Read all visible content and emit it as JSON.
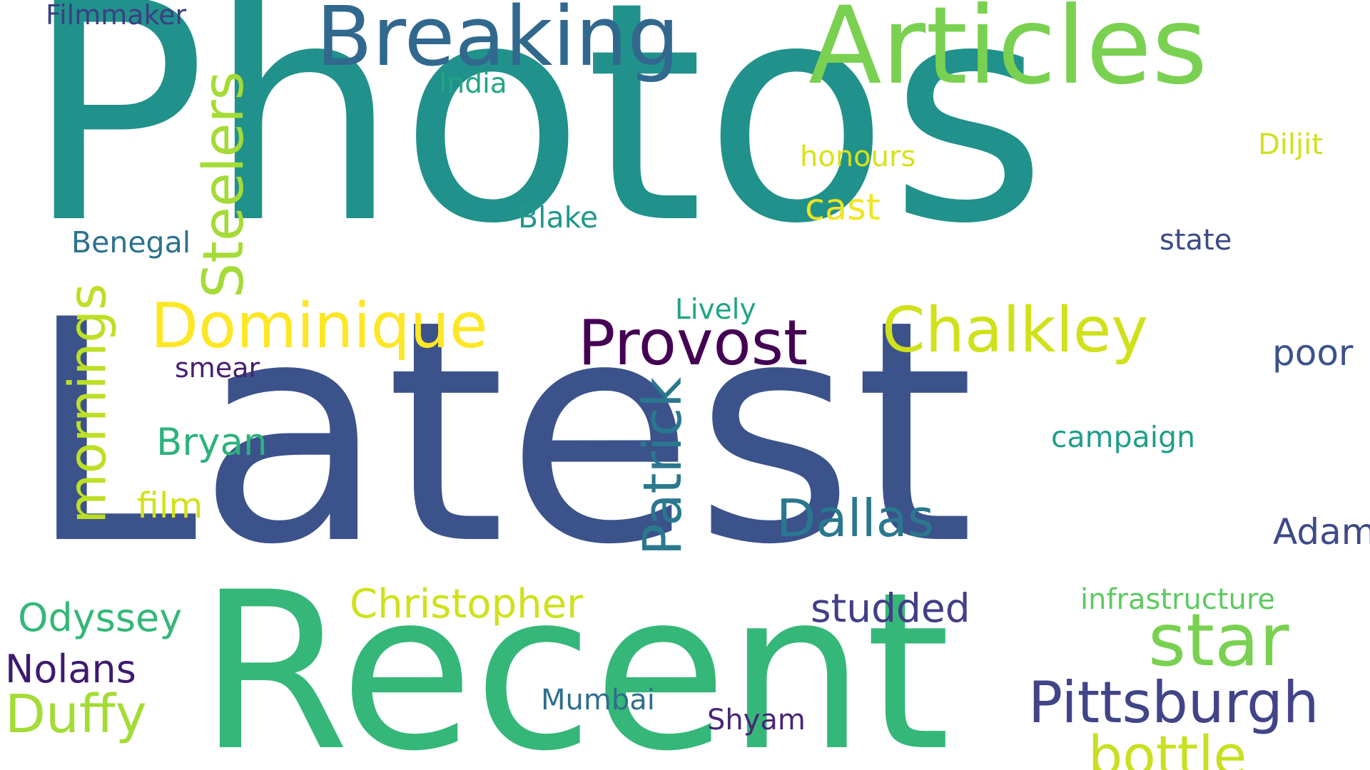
{
  "words": [
    {
      "id": "photos",
      "text": "Photos",
      "color": "#21918c",
      "orientation": "horizontal"
    },
    {
      "id": "latest",
      "text": "Latest",
      "color": "#3b528b",
      "orientation": "horizontal"
    },
    {
      "id": "recent",
      "text": "Recent",
      "color": "#35b779",
      "orientation": "horizontal"
    },
    {
      "id": "articles",
      "text": "Articles",
      "color": "#7ad151",
      "orientation": "horizontal"
    },
    {
      "id": "breaking",
      "text": "Breaking",
      "color": "#31688e",
      "orientation": "horizontal"
    },
    {
      "id": "steelers",
      "text": "Steelers",
      "color": "#a5db36",
      "orientation": "vertical"
    },
    {
      "id": "mornings",
      "text": "mornings",
      "color": "#bddf26",
      "orientation": "vertical"
    },
    {
      "id": "patrick",
      "text": "Patrick",
      "color": "#2a788e",
      "orientation": "vertical"
    },
    {
      "id": "dominique",
      "text": "Dominique",
      "color": "#fde725",
      "orientation": "horizontal"
    },
    {
      "id": "provost",
      "text": "Provost",
      "color": "#440154",
      "orientation": "horizontal"
    },
    {
      "id": "chalkley",
      "text": "Chalkley",
      "color": "#d0e11c",
      "orientation": "horizontal"
    },
    {
      "id": "star",
      "text": "star",
      "color": "#7ad151",
      "orientation": "horizontal"
    },
    {
      "id": "pittsburgh",
      "text": "Pittsburgh",
      "color": "#414487",
      "orientation": "horizontal"
    },
    {
      "id": "bottle",
      "text": "bottle",
      "color": "#c8e020",
      "orientation": "horizontal"
    },
    {
      "id": "dallas",
      "text": "Dallas",
      "color": "#2a788e",
      "orientation": "horizontal"
    },
    {
      "id": "christopher",
      "text": "Christopher",
      "color": "#d0e11c",
      "orientation": "horizontal"
    },
    {
      "id": "studded",
      "text": "studded",
      "color": "#433e85",
      "orientation": "horizontal"
    },
    {
      "id": "duffy",
      "text": "Duffy",
      "color": "#a5db36",
      "orientation": "horizontal"
    },
    {
      "id": "odyssey",
      "text": "Odyssey",
      "color": "#35b779",
      "orientation": "horizontal"
    },
    {
      "id": "nolans",
      "text": "Nolans",
      "color": "#3e1a6f",
      "orientation": "horizontal"
    },
    {
      "id": "bryan",
      "text": "Bryan",
      "color": "#2db27d",
      "orientation": "horizontal"
    },
    {
      "id": "film",
      "text": "film",
      "color": "#d2e21b",
      "orientation": "horizontal"
    },
    {
      "id": "adam",
      "text": "Adam",
      "color": "#3e4989",
      "orientation": "horizontal"
    },
    {
      "id": "poor",
      "text": "poor",
      "color": "#3b528b",
      "orientation": "horizontal"
    },
    {
      "id": "cast",
      "text": "cast",
      "color": "#f1e51d",
      "orientation": "horizontal"
    },
    {
      "id": "campaign",
      "text": "campaign",
      "color": "#1f9e89",
      "orientation": "horizontal"
    },
    {
      "id": "infrastructure",
      "text": "infrastructure",
      "color": "#5ec962",
      "orientation": "horizontal"
    },
    {
      "id": "benegal",
      "text": "Benegal",
      "color": "#2c728e",
      "orientation": "horizontal"
    },
    {
      "id": "blake",
      "text": "Blake",
      "color": "#1f988b",
      "orientation": "horizontal"
    },
    {
      "id": "honours",
      "text": "honours",
      "color": "#d8e219",
      "orientation": "horizontal"
    },
    {
      "id": "diljit",
      "text": "Diljit",
      "color": "#d0e11c",
      "orientation": "horizontal"
    },
    {
      "id": "state",
      "text": "state",
      "color": "#3b4a88",
      "orientation": "horizontal"
    },
    {
      "id": "lively",
      "text": "Lively",
      "color": "#20a486",
      "orientation": "horizontal"
    },
    {
      "id": "smear",
      "text": "smear",
      "color": "#481f70",
      "orientation": "horizontal"
    },
    {
      "id": "india",
      "text": "India",
      "color": "#21a585",
      "orientation": "horizontal"
    },
    {
      "id": "filmmaker",
      "text": "Filmmaker",
      "color": "#3b3f82",
      "orientation": "horizontal"
    },
    {
      "id": "mumbai",
      "text": "Mumbai",
      "color": "#2e6e8e",
      "orientation": "horizontal"
    },
    {
      "id": "shyam",
      "text": "Shyam",
      "color": "#482576",
      "orientation": "horizontal"
    }
  ]
}
